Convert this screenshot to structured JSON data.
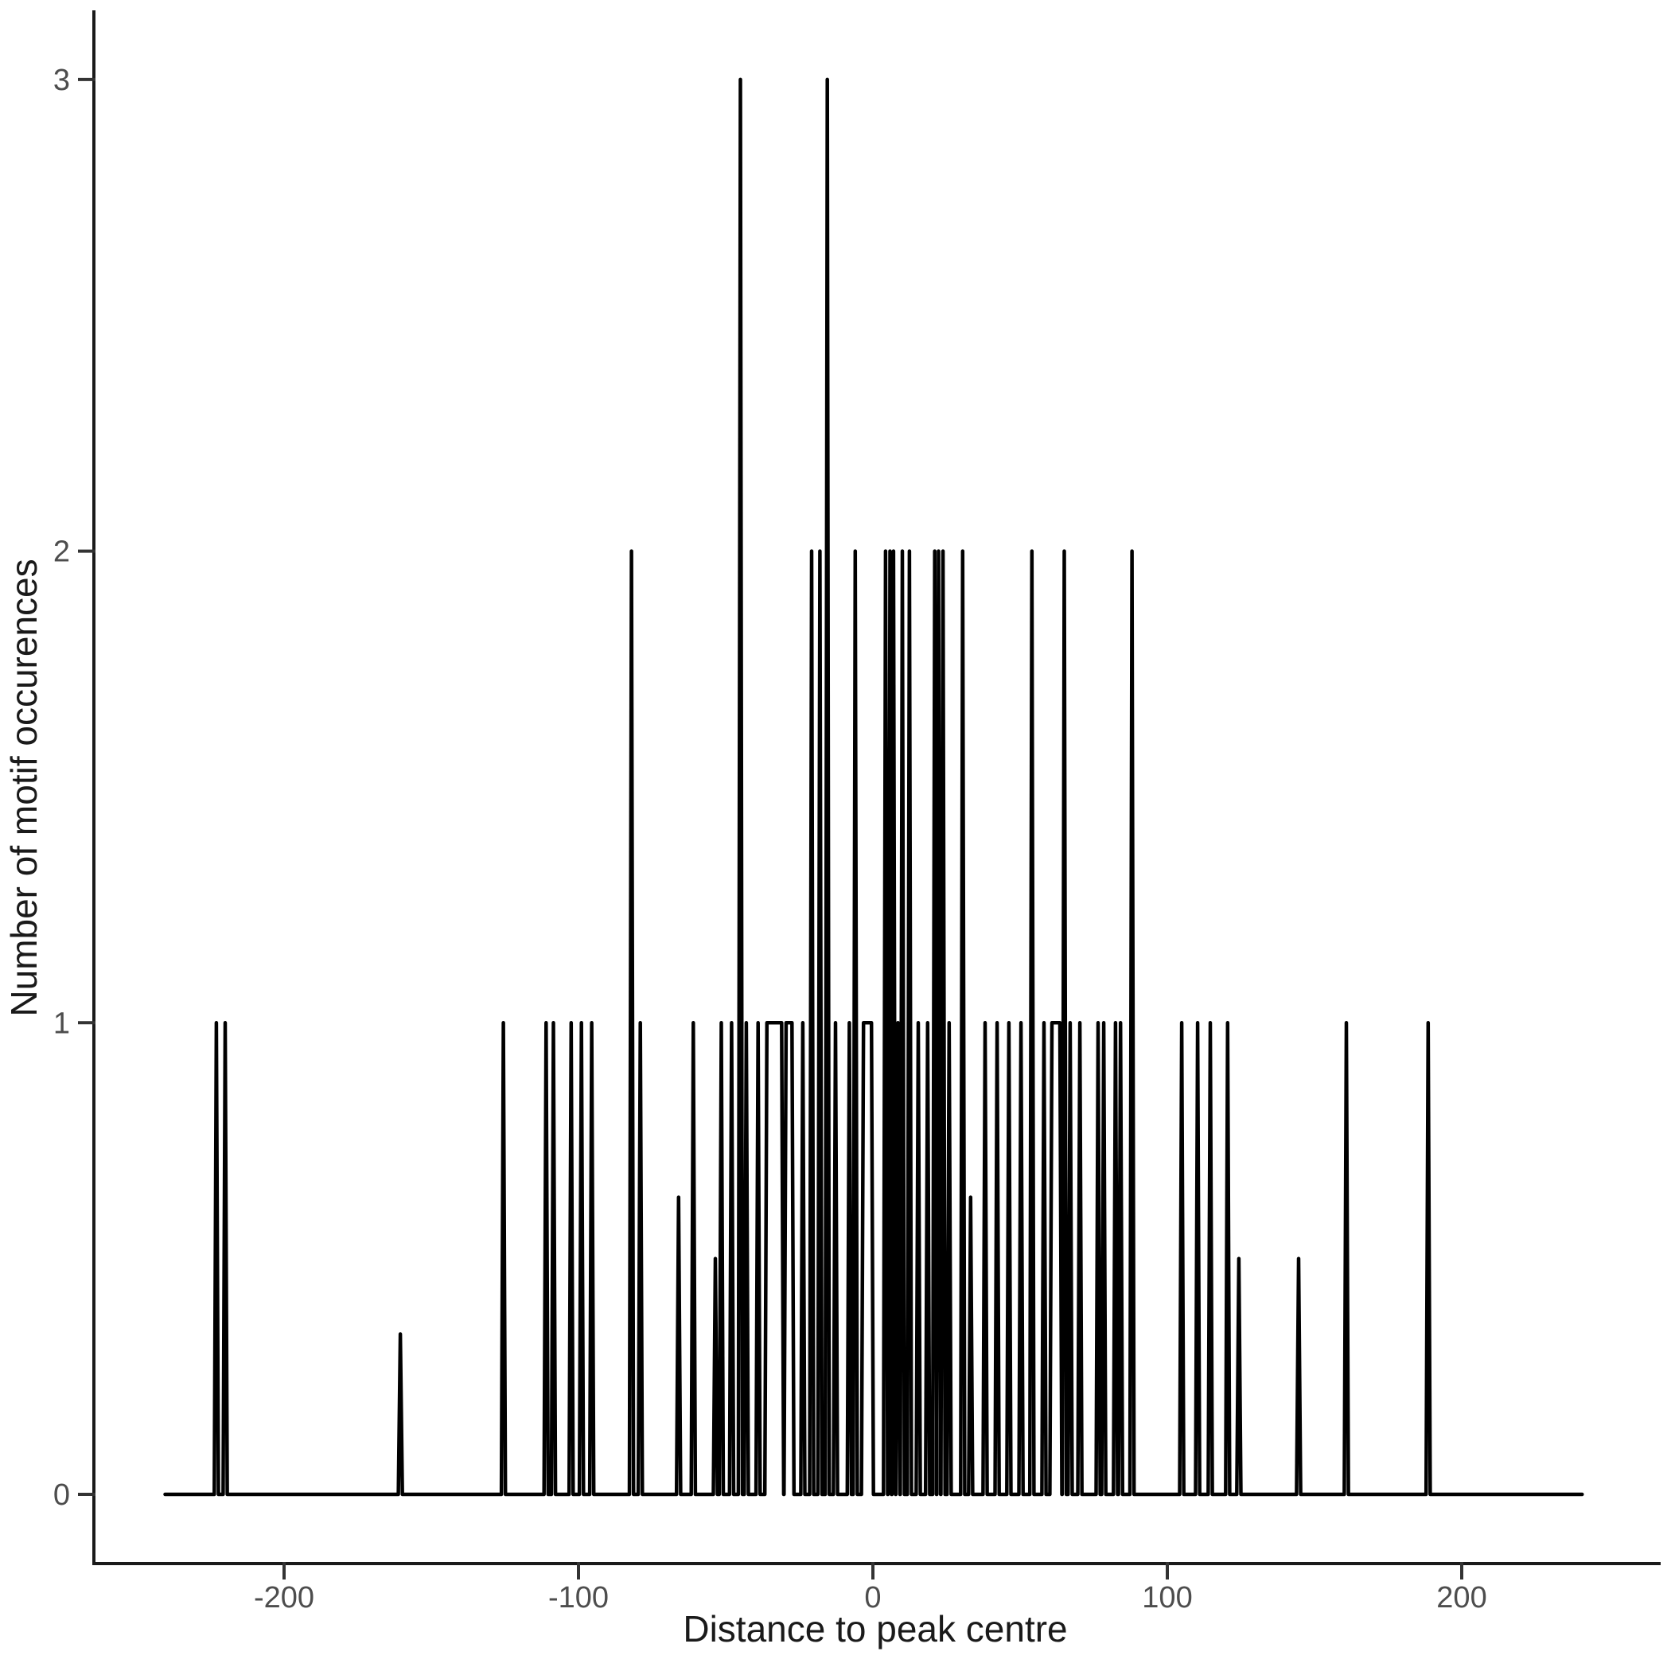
{
  "chart_data": {
    "type": "line",
    "title": "",
    "xlabel": "Distance to peak centre",
    "ylabel": "Number of motif occurences",
    "x_ticks": [
      -200,
      -100,
      0,
      100,
      200
    ],
    "x_tick_labels": [
      "-200",
      "-100",
      "0",
      "100",
      "200"
    ],
    "y_ticks": [
      0,
      1,
      2,
      3
    ],
    "y_tick_labels": [
      "0",
      "1",
      "2",
      "3"
    ],
    "xlim": [
      -264,
      267
    ],
    "ylim": [
      -0.15,
      3.15
    ],
    "grid": false,
    "legend": "none",
    "line_color": "#000000",
    "baseline": {
      "start": -240.4,
      "end": 240.9,
      "value": 0
    },
    "spikes": [
      {
        "x": -223,
        "h": 1
      },
      {
        "x": -220,
        "h": 1
      },
      {
        "x": -160.5,
        "h": 0.34
      },
      {
        "x": -125.5,
        "h": 1
      },
      {
        "x": -111,
        "h": 1
      },
      {
        "x": -108.5,
        "h": 1
      },
      {
        "x": -102.5,
        "h": 1
      },
      {
        "x": -99,
        "h": 1
      },
      {
        "x": -95.5,
        "h": 1
      },
      {
        "x": -82,
        "h": 2
      },
      {
        "x": -79,
        "h": 1
      },
      {
        "x": -66,
        "h": 0.63
      },
      {
        "x": -61,
        "h": 1
      },
      {
        "x": -53.5,
        "h": 0.5
      },
      {
        "x": -51.5,
        "h": 1
      },
      {
        "x": -48,
        "h": 1
      },
      {
        "x": -45,
        "h": 3
      },
      {
        "x": -43,
        "h": 1
      },
      {
        "x": -39,
        "h": 1
      },
      {
        "x": -23.8,
        "h": 1
      },
      {
        "x": -20.8,
        "h": 2
      },
      {
        "x": -18,
        "h": 2
      },
      {
        "x": -15.5,
        "h": 3
      },
      {
        "x": -12.7,
        "h": 1
      },
      {
        "x": -8,
        "h": 1
      },
      {
        "x": -6,
        "h": 2
      },
      {
        "x": 4.3,
        "h": 2
      },
      {
        "x": 5.8,
        "h": 2
      },
      {
        "x": 7,
        "h": 2
      },
      {
        "x": 8.5,
        "h": 1
      },
      {
        "x": 10,
        "h": 2
      },
      {
        "x": 12.4,
        "h": 2
      },
      {
        "x": 15.4,
        "h": 1
      },
      {
        "x": 18.6,
        "h": 1
      },
      {
        "x": 21,
        "h": 2
      },
      {
        "x": 22.3,
        "h": 2
      },
      {
        "x": 23.8,
        "h": 2
      },
      {
        "x": 25.9,
        "h": 1
      },
      {
        "x": 30.5,
        "h": 2
      },
      {
        "x": 33.2,
        "h": 0.63
      },
      {
        "x": 38.1,
        "h": 1
      },
      {
        "x": 42.2,
        "h": 1
      },
      {
        "x": 46.2,
        "h": 1
      },
      {
        "x": 50.3,
        "h": 1
      },
      {
        "x": 54,
        "h": 2
      },
      {
        "x": 58.1,
        "h": 1
      },
      {
        "x": 65,
        "h": 2
      },
      {
        "x": 67,
        "h": 1
      },
      {
        "x": 70.3,
        "h": 1
      },
      {
        "x": 76.5,
        "h": 1
      },
      {
        "x": 78.4,
        "h": 1
      },
      {
        "x": 82.4,
        "h": 1
      },
      {
        "x": 84.1,
        "h": 1
      },
      {
        "x": 88,
        "h": 2
      },
      {
        "x": 104.9,
        "h": 1
      },
      {
        "x": 110.3,
        "h": 1
      },
      {
        "x": 114.6,
        "h": 1
      },
      {
        "x": 120.5,
        "h": 1
      },
      {
        "x": 124.3,
        "h": 0.5
      },
      {
        "x": 144.6,
        "h": 0.5
      },
      {
        "x": 160.8,
        "h": 1
      },
      {
        "x": 188.6,
        "h": 1
      }
    ],
    "plateaus": [
      {
        "x1": -36,
        "x2": -31,
        "h": 1
      },
      {
        "x1": -29.5,
        "x2": -27.5,
        "h": 1
      },
      {
        "x1": -3.2,
        "x2": -0.5,
        "h": 1
      },
      {
        "x1": 60.8,
        "x2": 63.5,
        "h": 1
      }
    ]
  },
  "style": {
    "line_color": "#000000",
    "axis_color": "#1a1a1a",
    "tick_color": "#333333",
    "tick_label_color": "#4d4d4d",
    "title_color": "#1a1a1a",
    "background": "#ffffff"
  }
}
